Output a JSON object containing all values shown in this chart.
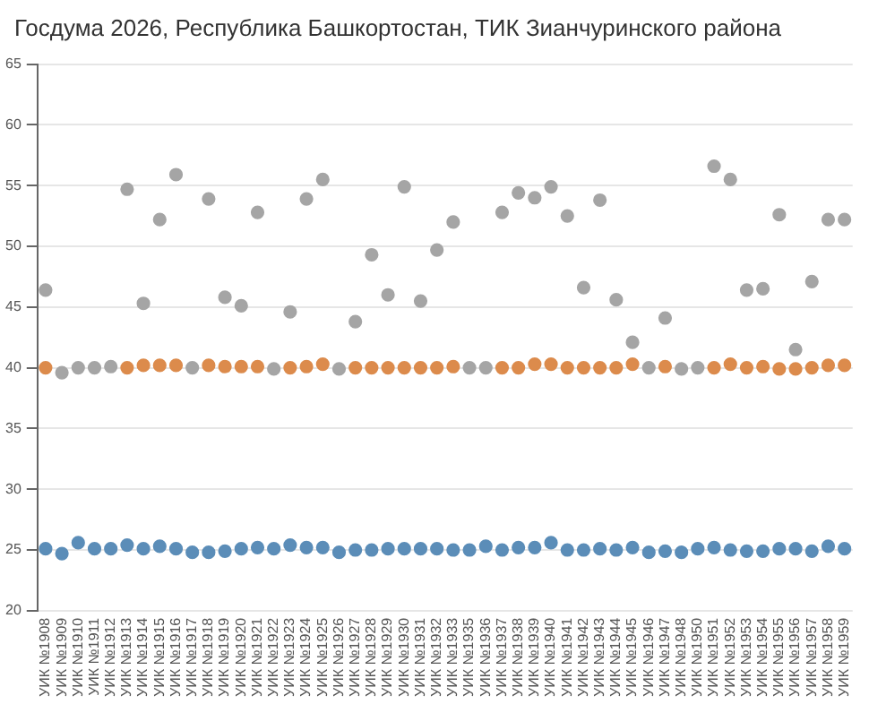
{
  "chart_data": {
    "type": "scatter",
    "title": "Госдума 2026, Республика Башкортостан, ТИК Зианчуринского района",
    "categories": [
      "УИК №1908",
      "УИК №1909",
      "УИК №1910",
      "УИК №1911",
      "УИК №1912",
      "УИК №1913",
      "УИК №1914",
      "УИК №1915",
      "УИК №1916",
      "УИК №1917",
      "УИК №1918",
      "УИК №1919",
      "УИК №1920",
      "УИК №1921",
      "УИК №1922",
      "УИК №1923",
      "УИК №1924",
      "УИК №1925",
      "УИК №1926",
      "УИК №1927",
      "УИК №1928",
      "УИК №1929",
      "УИК №1930",
      "УИК №1931",
      "УИК №1932",
      "УИК №1933",
      "УИК №1935",
      "УИК №1936",
      "УИК №1937",
      "УИК №1938",
      "УИК №1939",
      "УИК №1940",
      "УИК №1941",
      "УИК №1942",
      "УИК №1943",
      "УИК №1944",
      "УИК №1945",
      "УИК №1946",
      "УИК №1947",
      "УИК №1948",
      "УИК №1950",
      "УИК №1951",
      "УИК №1952",
      "УИК №1953",
      "УИК №1954",
      "УИК №1955",
      "УИК №1956",
      "УИК №1957",
      "УИК №1958",
      "УИК №1959"
    ],
    "series": [
      {
        "color": "#5b8db8",
        "values": [
          25.1,
          24.7,
          25.6,
          25.1,
          25.1,
          25.4,
          25.1,
          25.3,
          25.1,
          24.8,
          24.8,
          24.9,
          25.1,
          25.2,
          25.1,
          25.4,
          25.2,
          25.2,
          24.8,
          25.0,
          25.0,
          25.1,
          25.1,
          25.1,
          25.1,
          25.0,
          25.0,
          25.3,
          25.0,
          25.2,
          25.2,
          25.6,
          25.0,
          25.0,
          25.1,
          25.0,
          25.2,
          24.8,
          24.9,
          24.8,
          25.1,
          25.2,
          25.0,
          24.9,
          24.9,
          25.1,
          25.1,
          24.9,
          25.3,
          25.1
        ]
      },
      {
        "color": "#dc8b4c",
        "values": [
          40.0,
          null,
          null,
          null,
          null,
          40.0,
          40.2,
          40.2,
          40.2,
          null,
          40.2,
          40.1,
          40.1,
          40.1,
          null,
          40.0,
          40.1,
          40.3,
          null,
          40.0,
          40.0,
          40.0,
          40.0,
          40.0,
          40.0,
          40.1,
          null,
          null,
          40.0,
          40.0,
          40.3,
          40.3,
          40.0,
          40.0,
          40.0,
          40.0,
          40.3,
          null,
          40.1,
          null,
          null,
          40.0,
          40.3,
          40.0,
          40.1,
          39.9,
          39.9,
          40.0,
          40.2,
          40.2
        ]
      },
      {
        "color": "#a5a5a5",
        "values": [
          46.4,
          39.6,
          40.0,
          40.0,
          40.1,
          54.7,
          45.3,
          52.2,
          55.9,
          40.0,
          53.9,
          45.8,
          45.1,
          52.8,
          39.9,
          44.6,
          53.9,
          55.5,
          39.9,
          43.8,
          49.3,
          46.0,
          54.9,
          45.5,
          49.7,
          52.0,
          40.0,
          40.0,
          52.8,
          54.4,
          54.0,
          54.9,
          52.5,
          46.6,
          53.8,
          45.6,
          42.1,
          40.0,
          44.1,
          39.9,
          40.0,
          56.6,
          55.5,
          46.4,
          46.5,
          52.6,
          41.5,
          47.1,
          52.2,
          52.2
        ]
      }
    ],
    "ylim": [
      20,
      65
    ],
    "yticks": [
      20,
      25,
      30,
      35,
      40,
      45,
      50,
      55,
      60,
      65
    ],
    "grid": "y",
    "marker": "circle"
  }
}
